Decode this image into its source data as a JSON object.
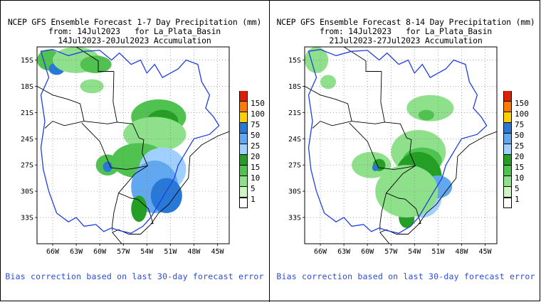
{
  "chart_data": [
    {
      "type": "heatmap",
      "title": "NCEP GFS Ensemble Forecast 1-7 Day Precipitation (mm)",
      "subtitle_from": "from: 14Jul2023   for La_Plata_Basin",
      "subtitle_period": "14Jul2023-20Jul2023 Accumulation",
      "x_ticks": [
        "66W",
        "63W",
        "60W",
        "57W",
        "54W",
        "51W",
        "48W",
        "45W"
      ],
      "y_ticks": [
        "15S",
        "18S",
        "21S",
        "24S",
        "27S",
        "30S",
        "33S"
      ],
      "xlim_lon": [
        -68,
        -43.5
      ],
      "ylim_lat": [
        -36,
        -13.5
      ],
      "grid": "dotted",
      "legend_levels": [
        "1",
        "5",
        "10",
        "15",
        "20",
        "25",
        "50",
        "75",
        "100",
        "150"
      ],
      "legend_colors": [
        "#ffffff",
        "#ccf5c0",
        "#8ee08a",
        "#4fc24f",
        "#23a023",
        "#9fd0ff",
        "#62a8f0",
        "#2878d8",
        "#ffd000",
        "#ff7a00",
        "#e01e00"
      ],
      "legend_placement": "right",
      "annotation": "Bias correction based on last 30-day forecast error",
      "precip_areas": [
        {
          "lon": -66.5,
          "lat": -15,
          "rx": 1.5,
          "ry": 1.2,
          "level": 10
        },
        {
          "lon": -65.5,
          "lat": -16,
          "rx": 1,
          "ry": 0.7,
          "level": 50
        },
        {
          "lon": -63,
          "lat": -15,
          "rx": 3,
          "ry": 1.5,
          "level": 5
        },
        {
          "lon": -60.5,
          "lat": -15.5,
          "rx": 2,
          "ry": 1,
          "level": 10
        },
        {
          "lon": -61,
          "lat": -18,
          "rx": 1.5,
          "ry": 0.8,
          "level": 5
        },
        {
          "lon": -52.5,
          "lat": -21.5,
          "rx": 3.5,
          "ry": 2,
          "level": 10
        },
        {
          "lon": -52,
          "lat": -22,
          "rx": 2,
          "ry": 1.3,
          "level": 15
        },
        {
          "lon": -53,
          "lat": -23.5,
          "rx": 4,
          "ry": 2,
          "level": 5
        },
        {
          "lon": -55,
          "lat": -26.5,
          "rx": 3.5,
          "ry": 2,
          "level": 10
        },
        {
          "lon": -52,
          "lat": -27.5,
          "rx": 3,
          "ry": 2.5,
          "level": 20
        },
        {
          "lon": -53,
          "lat": -29.5,
          "rx": 3,
          "ry": 3,
          "level": 25
        },
        {
          "lon": -51.5,
          "lat": -30.5,
          "rx": 2,
          "ry": 2,
          "level": 50
        },
        {
          "lon": -59,
          "lat": -27,
          "rx": 1.5,
          "ry": 1.2,
          "level": 10
        },
        {
          "lon": -59,
          "lat": -27.2,
          "rx": 0.6,
          "ry": 0.6,
          "level": 50
        },
        {
          "lon": -55,
          "lat": -32,
          "rx": 1,
          "ry": 1.5,
          "level": 15
        }
      ]
    },
    {
      "type": "heatmap",
      "title": "NCEP GFS Ensemble Forecast 8-14 Day Precipitation (mm)",
      "subtitle_from": "from: 14Jul2023   for La_Plata_Basin",
      "subtitle_period": "21Jul2023-27Jul2023 Accumulation",
      "x_ticks": [
        "66W",
        "63W",
        "60W",
        "57W",
        "54W",
        "51W",
        "48W",
        "45W"
      ],
      "y_ticks": [
        "15S",
        "18S",
        "21S",
        "24S",
        "27S",
        "30S",
        "33S"
      ],
      "xlim_lon": [
        -68,
        -43.5
      ],
      "ylim_lat": [
        -36,
        -13.5
      ],
      "grid": "dotted",
      "legend_levels": [
        "1",
        "5",
        "10",
        "15",
        "20",
        "25",
        "50",
        "75",
        "100",
        "150"
      ],
      "legend_colors": [
        "#ffffff",
        "#ccf5c0",
        "#8ee08a",
        "#4fc24f",
        "#23a023",
        "#9fd0ff",
        "#62a8f0",
        "#2878d8",
        "#ffd000",
        "#ff7a00",
        "#e01e00"
      ],
      "legend_placement": "right",
      "annotation": "Bias correction based on last 30-day forecast error",
      "precip_areas": [
        {
          "lon": -66.5,
          "lat": -15,
          "rx": 1.5,
          "ry": 1.5,
          "level": 5
        },
        {
          "lon": -65,
          "lat": -17.5,
          "rx": 1,
          "ry": 0.8,
          "level": 5
        },
        {
          "lon": -52,
          "lat": -20.5,
          "rx": 3,
          "ry": 1.5,
          "level": 5
        },
        {
          "lon": -52.5,
          "lat": -21.3,
          "rx": 1,
          "ry": 0.6,
          "level": 10
        },
        {
          "lon": -53.5,
          "lat": -25.5,
          "rx": 3.5,
          "ry": 2.5,
          "level": 5
        },
        {
          "lon": -53,
          "lat": -26.5,
          "rx": 2.5,
          "ry": 1.5,
          "level": 10
        },
        {
          "lon": -53.5,
          "lat": -28.5,
          "rx": 3,
          "ry": 3,
          "level": 15
        },
        {
          "lon": -53,
          "lat": -30.5,
          "rx": 2.5,
          "ry": 2.5,
          "level": 20
        },
        {
          "lon": -51,
          "lat": -29.5,
          "rx": 1.8,
          "ry": 1.3,
          "level": 25
        },
        {
          "lon": -59.5,
          "lat": -27,
          "rx": 2.5,
          "ry": 1.5,
          "level": 5
        },
        {
          "lon": -58.5,
          "lat": -27,
          "rx": 0.8,
          "ry": 0.7,
          "level": 15
        },
        {
          "lon": -59,
          "lat": -27.3,
          "rx": 0.4,
          "ry": 0.4,
          "level": 50
        },
        {
          "lon": -55,
          "lat": -33,
          "rx": 1,
          "ry": 1.2,
          "level": 15
        },
        {
          "lon": -55,
          "lat": -30,
          "rx": 4,
          "ry": 3,
          "level": 5
        }
      ]
    }
  ]
}
